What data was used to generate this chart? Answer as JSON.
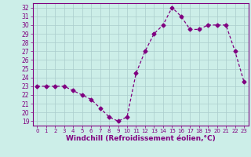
{
  "x": [
    0,
    1,
    2,
    3,
    4,
    5,
    6,
    7,
    8,
    9,
    10,
    11,
    12,
    13,
    14,
    15,
    16,
    17,
    18,
    19,
    20,
    21,
    22,
    23
  ],
  "y": [
    23.0,
    23.0,
    23.0,
    23.0,
    22.5,
    22.0,
    21.5,
    20.5,
    19.5,
    19.0,
    19.5,
    24.5,
    27.0,
    29.0,
    30.0,
    32.0,
    31.0,
    29.5,
    29.5,
    30.0,
    30.0,
    30.0,
    27.0,
    23.5
  ],
  "line_color": "#800080",
  "marker": "D",
  "marker_size": 2.5,
  "linewidth": 0.9,
  "background_color": "#cceee8",
  "grid_color": "#aacccc",
  "xlabel": "Windchill (Refroidissement éolien,°C)",
  "xlabel_fontsize": 6.5,
  "tick_color": "#800080",
  "ylim": [
    18.5,
    32.5
  ],
  "yticks": [
    19,
    20,
    21,
    22,
    23,
    24,
    25,
    26,
    27,
    28,
    29,
    30,
    31,
    32
  ],
  "xlim": [
    -0.5,
    23.5
  ],
  "xticks": [
    0,
    1,
    2,
    3,
    4,
    5,
    6,
    7,
    8,
    9,
    10,
    11,
    12,
    13,
    14,
    15,
    16,
    17,
    18,
    19,
    20,
    21,
    22,
    23
  ]
}
